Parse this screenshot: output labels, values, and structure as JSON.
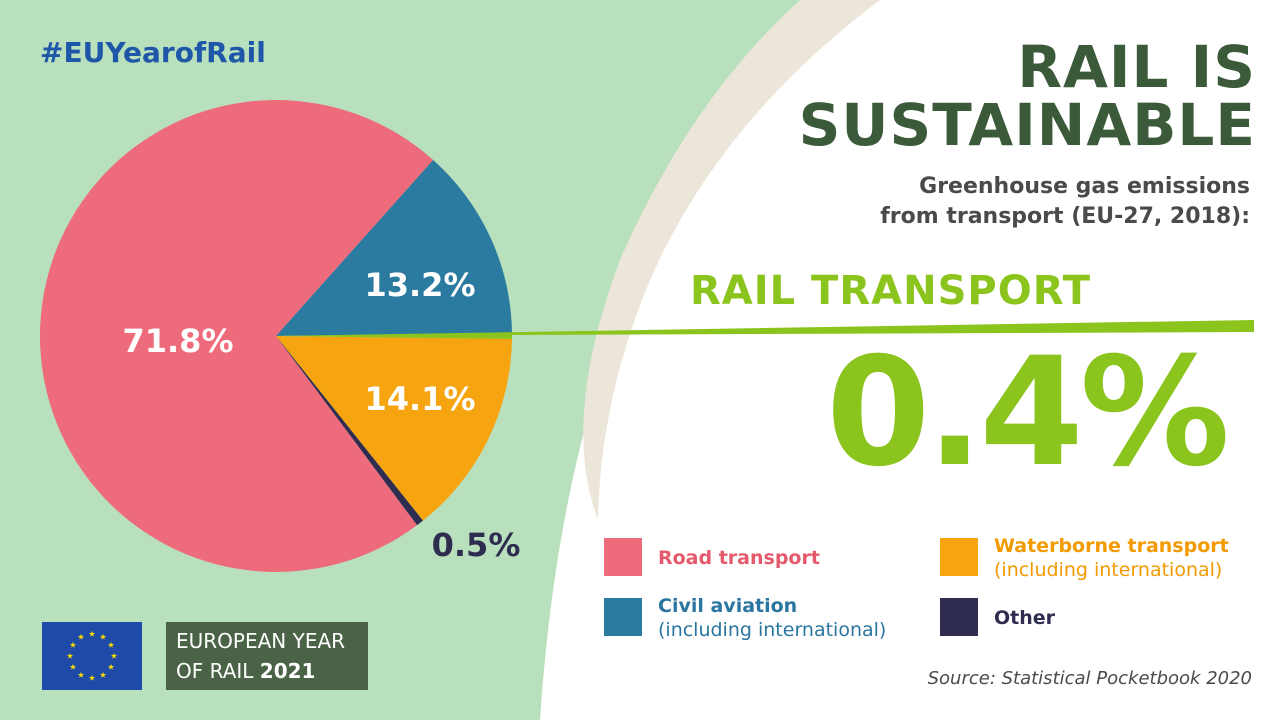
{
  "header": {
    "hashtag": "#EUYearofRail",
    "title_line1": "RAIL IS",
    "title_line2": "SUSTAINABLE",
    "subtitle_line1": "Greenhouse gas emissions",
    "subtitle_line2": "from transport (EU-27, 2018):"
  },
  "highlight": {
    "label": "RAIL TRANSPORT",
    "value": "0.4%",
    "color": "#8cc41e"
  },
  "chart_data": {
    "type": "pie",
    "title": "",
    "slices": [
      {
        "name": "Road transport",
        "value": 71.8,
        "label": "71.8%",
        "color": "#ee6b7c"
      },
      {
        "name": "Civil aviation",
        "value": 13.2,
        "label": "13.2%",
        "color": "#2b7aa0"
      },
      {
        "name": "Waterborne transport",
        "value": 14.1,
        "label": "14.1%",
        "color": "#f7a411"
      },
      {
        "name": "Other",
        "value": 0.5,
        "label": "0.5%",
        "color": "#2e2d4f"
      },
      {
        "name": "Rail transport",
        "value": 0.4,
        "label": "0.4%",
        "color": "#8cc41e"
      }
    ]
  },
  "legend": {
    "items": [
      {
        "main": "Road transport",
        "sub": "",
        "color": "#ee6b7c",
        "text_color": "#e45a6c"
      },
      {
        "main": "Waterborne transport",
        "sub": "(including international)",
        "color": "#f7a411",
        "text_color": "#f29a00"
      },
      {
        "main": "Civil aviation",
        "sub": "(including international)",
        "color": "#2b7aa0",
        "text_color": "#2a76a0"
      },
      {
        "main": "Other",
        "sub": "",
        "color": "#2e2d4f",
        "text_color": "#2e2d4f"
      }
    ]
  },
  "footer": {
    "source": "Source: Statistical Pocketbook 2020",
    "eyr_line1": "EUROPEAN YEAR",
    "eyr_line2_prefix": "OF RAIL ",
    "eyr_line2_year": "2021"
  }
}
